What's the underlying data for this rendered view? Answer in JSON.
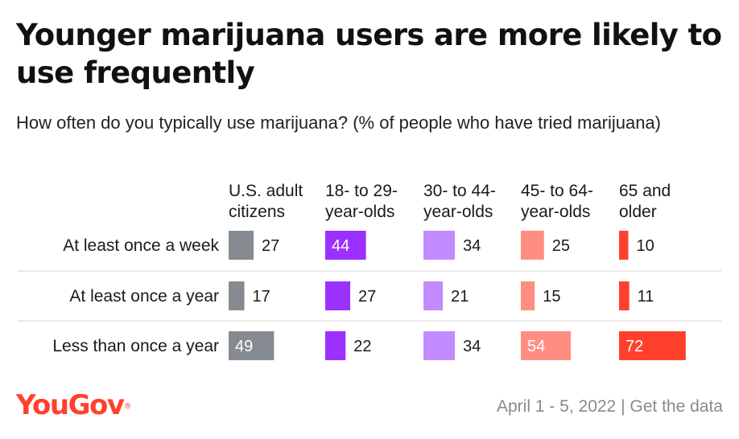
{
  "title": "Younger marijuana users are more likely to use frequently",
  "subtitle": "How often do you typically use marijuana? (% of people who have tried marijuana)",
  "logo_text": "YouGov",
  "logo_mark": "®",
  "footer": {
    "date": "April 1 - 5, 2022",
    "separator": "|",
    "link": "Get the data"
  },
  "chart_data": {
    "type": "bar",
    "title": "Younger marijuana users are more likely to use frequently",
    "subtitle": "How often do you typically use marijuana? (% of people who have tried marijuana)",
    "categories": [
      "At least once a week",
      "At least once a year",
      "Less than once a year"
    ],
    "series": [
      {
        "name": "U.S. adult citizens",
        "header_lines": [
          "U.S. adult",
          "citizens"
        ],
        "color": "#868a91",
        "values": [
          27,
          17,
          49
        ]
      },
      {
        "name": "18- to 29-year-olds",
        "header_lines": [
          "18- to 29-",
          "year-olds"
        ],
        "color": "#9b30ff",
        "values": [
          44,
          27,
          22
        ]
      },
      {
        "name": "30- to 44-year-olds",
        "header_lines": [
          "30- to 44-",
          "year-olds"
        ],
        "color": "#c28bff",
        "values": [
          34,
          21,
          34
        ]
      },
      {
        "name": "45- to 64-year-olds",
        "header_lines": [
          "45- to 64-",
          "year-olds"
        ],
        "color": "#ff8e82",
        "values": [
          25,
          15,
          54
        ]
      },
      {
        "name": "65 and older",
        "header_lines": [
          "65 and",
          "older"
        ],
        "color": "#ff412c",
        "values": [
          10,
          11,
          72
        ]
      }
    ],
    "ylim": [
      0,
      100
    ],
    "grid": false,
    "legend": "none"
  }
}
